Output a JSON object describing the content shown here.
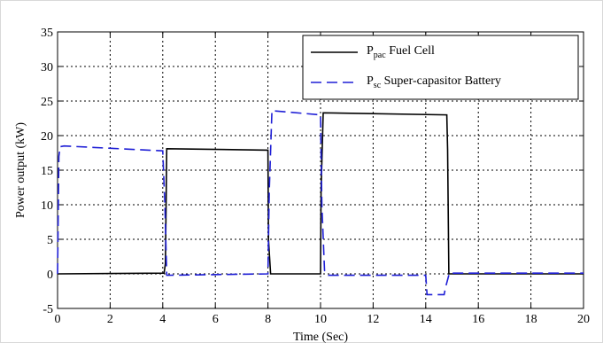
{
  "chart_data": {
    "type": "line",
    "xlabel": "Time (Sec)",
    "ylabel": "Power output (kW)",
    "xlim": [
      0,
      20
    ],
    "ylim": [
      -5,
      35
    ],
    "xticks": [
      0,
      2,
      4,
      6,
      8,
      10,
      12,
      14,
      16,
      18,
      20
    ],
    "yticks": [
      -5,
      0,
      5,
      10,
      15,
      20,
      25,
      30,
      35
    ],
    "grid": true,
    "legend_position": "top-right",
    "series": [
      {
        "name_main": "P",
        "name_sub": "pac",
        "name_rest": " Fuel Cell",
        "color": "#000000",
        "style": "solid",
        "x": [
          0,
          4.05,
          4.1,
          4.15,
          8.0,
          8.02,
          8.1,
          10.0,
          10.02,
          10.1,
          14.8,
          14.83,
          14.88,
          20
        ],
        "y": [
          0,
          0.1,
          1.5,
          18.1,
          17.9,
          5,
          0,
          0,
          12,
          23.3,
          23.0,
          18,
          0,
          0
        ]
      },
      {
        "name_main": "P",
        "name_sub": "sc",
        "name_rest": " Super-capasitor Battery",
        "color": "#1f1fd6",
        "style": "dashed",
        "x": [
          0,
          0.05,
          0.1,
          0.25,
          4.0,
          4.08,
          4.15,
          8.0,
          8.05,
          8.15,
          10.0,
          10.05,
          10.15,
          10.3,
          14.0,
          14.05,
          14.7,
          14.75,
          14.9,
          20
        ],
        "y": [
          0,
          17,
          18.4,
          18.5,
          17.8,
          10,
          -0.2,
          0,
          12,
          23.6,
          23.0,
          10,
          0.5,
          -0.2,
          -0.2,
          -3.0,
          -3.0,
          -2.0,
          0.1,
          0.1
        ]
      }
    ]
  }
}
